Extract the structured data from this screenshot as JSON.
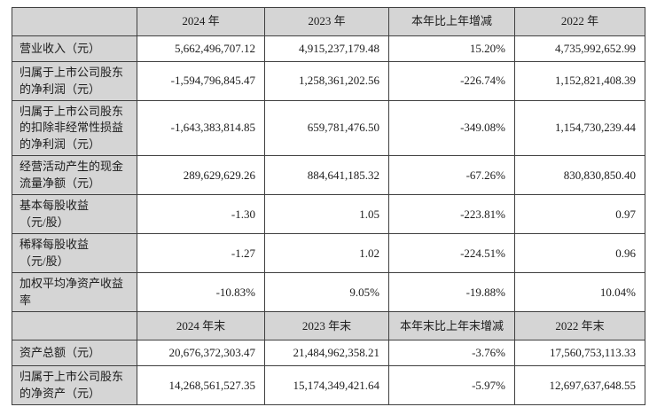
{
  "table": {
    "border_color": "#3f3f3f",
    "header_bg": "#d5d5d5",
    "label_bg": "#d5d5d5",
    "sections": [
      {
        "columns": [
          "2024 年",
          "2023 年",
          "本年比上年增减",
          "2022 年"
        ],
        "rows": [
          {
            "label": "营业收入（元）",
            "values": [
              "5,662,496,707.12",
              "4,915,237,179.48",
              "15.20%",
              "4,735,992,652.99"
            ]
          },
          {
            "label": "归属于上市公司股东\n的净利润（元）",
            "values": [
              "-1,594,796,845.47",
              "1,258,361,202.56",
              "-226.74%",
              "1,152,821,408.39"
            ]
          },
          {
            "label": "归属于上市公司股东\n的扣除非经常性损益\n的净利润（元）",
            "values": [
              "-1,643,383,814.85",
              "659,781,476.50",
              "-349.08%",
              "1,154,730,239.44"
            ]
          },
          {
            "label": "经营活动产生的现金\n流量净额（元）",
            "values": [
              "289,629,629.26",
              "884,641,185.32",
              "-67.26%",
              "830,830,850.40"
            ]
          },
          {
            "label": "基本每股收益\n（元/股）",
            "values": [
              "-1.30",
              "1.05",
              "-223.81%",
              "0.97"
            ]
          },
          {
            "label": "稀释每股收益\n（元/股）",
            "values": [
              "-1.27",
              "1.02",
              "-224.51%",
              "0.96"
            ]
          },
          {
            "label": "加权平均净资产收益\n率",
            "values": [
              "-10.83%",
              "9.05%",
              "-19.88%",
              "10.04%"
            ]
          }
        ]
      },
      {
        "columns": [
          "2024 年末",
          "2023 年末",
          "本年末比上年末增减",
          "2022 年末"
        ],
        "rows": [
          {
            "label": "资产总额（元）",
            "values": [
              "20,676,372,303.47",
              "21,484,962,358.21",
              "-3.76%",
              "17,560,753,113.33"
            ]
          },
          {
            "label": "归属于上市公司股东\n的净资产（元）",
            "values": [
              "14,268,561,527.35",
              "15,174,349,421.64",
              "-5.97%",
              "12,697,637,648.55"
            ]
          }
        ]
      }
    ]
  }
}
